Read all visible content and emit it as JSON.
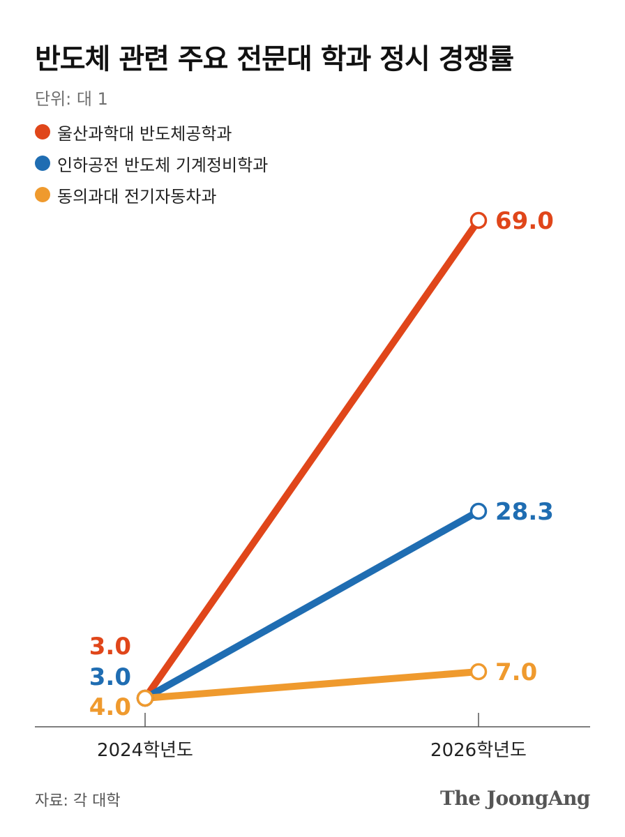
{
  "title": "반도체 관련 주요 전문대 학과 정시 경쟁률",
  "unit": "단위: 대 1",
  "source": "자료: 각 대학",
  "brand": "The JoongAng",
  "chart_data": {
    "type": "line",
    "categories": [
      "2024학년도",
      "2026학년도"
    ],
    "series": [
      {
        "name": "울산과학대 반도체공학과",
        "values": [
          3.0,
          69.0
        ],
        "labels": [
          "3.0",
          "69.0"
        ],
        "color": "#e0461a"
      },
      {
        "name": "인하공전 반도체 기계정비학과",
        "values": [
          3.0,
          28.3
        ],
        "labels": [
          "3.0",
          "28.3"
        ],
        "color": "#1f6db2"
      },
      {
        "name": "동의과대 전기자동차과",
        "values": [
          4.0,
          7.0
        ],
        "labels": [
          "4.0",
          "7.0"
        ],
        "color": "#ef9a2e"
      }
    ],
    "ylim": [
      0,
      69.0
    ],
    "grid": false,
    "legend": "top-left"
  }
}
